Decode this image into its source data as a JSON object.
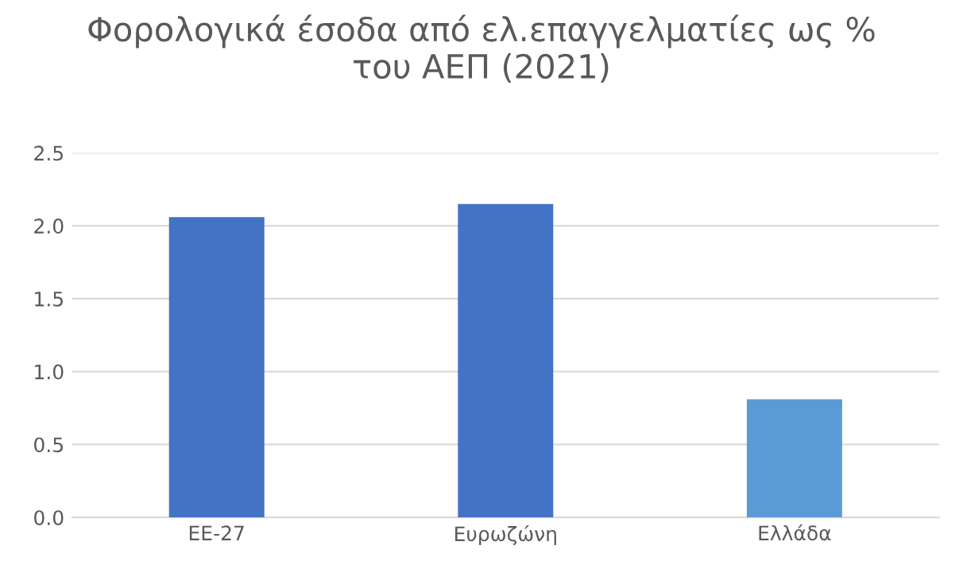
{
  "chart_data": {
    "type": "bar",
    "title": "Φορολογικά έσοδα από ελ.επαγγελματίες ως %\nτου ΑΕΠ (2021)",
    "categories": [
      "ΕΕ-27",
      "Ευρωζώνη",
      "Ελλάδα"
    ],
    "values": [
      2.06,
      2.15,
      0.81
    ],
    "colors": [
      "#4472c4",
      "#4472c4",
      "#5b9bd5"
    ],
    "ylim": [
      0,
      2.5
    ],
    "yticks": [
      {
        "value": 0,
        "label": "0.0"
      },
      {
        "value": 0.5,
        "label": "0.5"
      },
      {
        "value": 1,
        "label": "1.0"
      },
      {
        "value": 1.5,
        "label": "1.5"
      },
      {
        "value": 2,
        "label": "2.0"
      },
      {
        "value": 2.5,
        "label": "2.5"
      }
    ],
    "grid": "y"
  }
}
